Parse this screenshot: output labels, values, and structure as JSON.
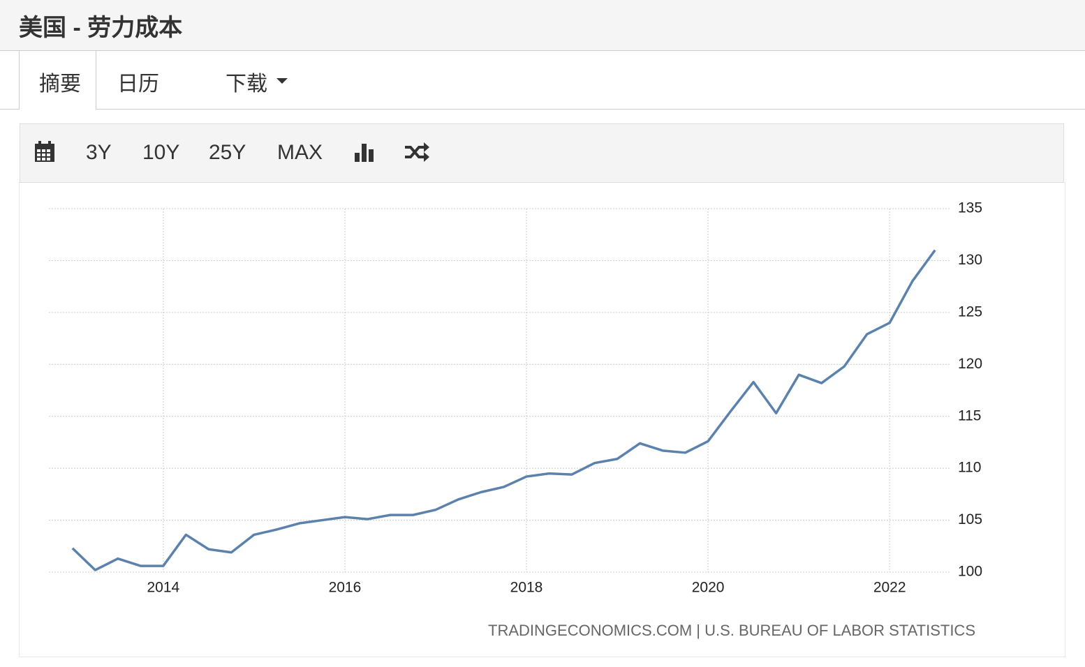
{
  "header": {
    "title": "美国 - 劳力成本"
  },
  "tabs": [
    "摘要",
    "日历",
    "下载"
  ],
  "toolbar": [
    "3Y",
    "10Y",
    "25Y",
    "MAX"
  ],
  "chart_data": {
    "type": "line",
    "x": [
      2013,
      2013.25,
      2013.5,
      2013.75,
      2014,
      2014.25,
      2014.5,
      2014.75,
      2015,
      2015.25,
      2015.5,
      2015.75,
      2016,
      2016.25,
      2016.5,
      2016.75,
      2017,
      2017.25,
      2017.5,
      2017.75,
      2018,
      2018.25,
      2018.5,
      2018.75,
      2019,
      2019.25,
      2019.5,
      2019.75,
      2020,
      2020.25,
      2020.5,
      2020.75,
      2021,
      2021.25,
      2021.5,
      2021.75,
      2022,
      2022.25,
      2022.5
    ],
    "series": [
      {
        "color": "#5b81ad",
        "values": [
          102.3,
          100.2,
          101.3,
          100.6,
          100.6,
          103.6,
          102.2,
          101.9,
          103.6,
          104.1,
          104.7,
          105.0,
          105.3,
          105.1,
          105.5,
          105.5,
          106.0,
          107.0,
          107.7,
          108.2,
          109.2,
          109.5,
          109.4,
          110.5,
          110.9,
          112.4,
          111.7,
          111.5,
          112.6,
          115.5,
          118.3,
          115.3,
          119.0,
          118.2,
          119.8,
          122.9,
          124.0,
          128.0,
          131.0
        ]
      }
    ],
    "xlim": [
      2012.74,
      2022.66
    ],
    "xticks": [
      2014,
      2016,
      2018,
      2020,
      2022
    ],
    "ylim": [
      100,
      135
    ],
    "yticks": [
      100,
      105,
      110,
      115,
      120,
      125,
      130,
      135
    ],
    "grid": true,
    "source": "TRADINGECONOMICS.COM | U.S. BUREAU OF LABOR STATISTICS"
  }
}
